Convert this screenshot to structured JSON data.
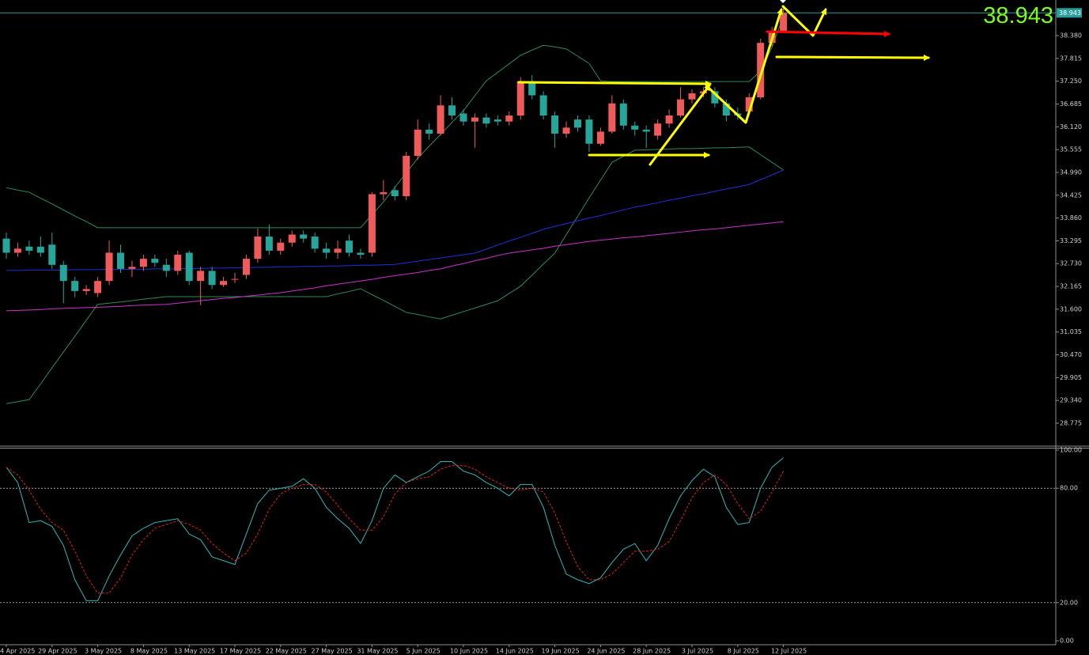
{
  "chart_data": [
    {
      "type": "candlestick",
      "categories": [
        "4 Apr 2025",
        null,
        null,
        null,
        "29 Apr 2025",
        null,
        null,
        null,
        "3 May 2025",
        null,
        null,
        null,
        "8 May 2025",
        null,
        null,
        null,
        "13 May 2025",
        null,
        null,
        null,
        "17 May 2025",
        null,
        null,
        null,
        "22 May 2025",
        null,
        null,
        null,
        "27 May 2025",
        null,
        null,
        null,
        "31 May 2025",
        null,
        null,
        null,
        "5 Jun 2025",
        null,
        null,
        null,
        "10 Jun 2025",
        null,
        null,
        null,
        "14 Jun 2025",
        null,
        null,
        null,
        "19 Jun 2025",
        null,
        null,
        null,
        "24 Jun 2025",
        null,
        null,
        null,
        "28 Jun 2025",
        null,
        null,
        null,
        "3 Jul 2025",
        null,
        null,
        null,
        "8 Jul 2025",
        null,
        null,
        null,
        "12 Jul 2025"
      ],
      "open": [
        33.35,
        33.0,
        33.15,
        33.15,
        33.2,
        32.7,
        32.3,
        32.05,
        32.0,
        32.3,
        33.0,
        32.6,
        32.65,
        32.85,
        32.7,
        32.55,
        33.0,
        32.3,
        32.55,
        32.2,
        32.35,
        32.45,
        32.85,
        33.4,
        33.05,
        33.25,
        33.45,
        33.4,
        33.1,
        33.0,
        33.3,
        33.0,
        33.0,
        34.45,
        34.55,
        34.4,
        35.4,
        36.05,
        35.95,
        36.65,
        36.45,
        36.25,
        36.35,
        36.3,
        36.25,
        36.4,
        37.25,
        36.9,
        36.4,
        35.95,
        36.3,
        36.3,
        35.7,
        36.0,
        36.7,
        36.15,
        36.05,
        35.9,
        36.2,
        36.4,
        36.8,
        36.95,
        37.0,
        36.7,
        36.45,
        36.5,
        36.85,
        38.2,
        38.5
      ],
      "high": [
        33.5,
        33.25,
        33.3,
        33.4,
        33.5,
        32.8,
        32.4,
        32.2,
        32.4,
        33.3,
        33.2,
        32.8,
        32.95,
        32.95,
        32.85,
        33.05,
        33.05,
        32.65,
        32.65,
        32.4,
        32.5,
        32.95,
        33.6,
        33.7,
        33.35,
        33.55,
        33.55,
        33.5,
        33.25,
        33.3,
        33.45,
        33.1,
        34.5,
        34.8,
        34.65,
        35.5,
        36.3,
        36.2,
        36.9,
        36.85,
        36.55,
        36.45,
        36.45,
        36.4,
        36.5,
        37.35,
        37.4,
        37.0,
        36.5,
        36.25,
        36.4,
        36.4,
        36.1,
        36.9,
        36.8,
        36.25,
        36.15,
        36.3,
        36.55,
        37.1,
        37.05,
        37.1,
        37.1,
        36.8,
        36.6,
        36.95,
        38.3,
        38.6,
        39.05
      ],
      "low": [
        32.85,
        32.9,
        32.95,
        32.9,
        32.6,
        31.75,
        31.9,
        31.95,
        31.9,
        32.2,
        32.5,
        32.4,
        32.55,
        32.65,
        32.4,
        32.45,
        32.2,
        31.7,
        32.1,
        32.15,
        32.25,
        32.35,
        32.75,
        32.95,
        32.95,
        33.15,
        33.25,
        33.0,
        32.85,
        32.85,
        32.9,
        32.85,
        32.9,
        34.3,
        34.3,
        34.3,
        35.3,
        35.8,
        35.9,
        36.3,
        36.15,
        35.6,
        36.1,
        36.15,
        36.15,
        36.3,
        36.8,
        36.3,
        35.6,
        35.85,
        36.0,
        35.5,
        35.65,
        35.95,
        36.05,
        35.9,
        35.6,
        35.8,
        36.1,
        36.35,
        36.7,
        36.85,
        36.6,
        36.25,
        36.3,
        36.4,
        36.8,
        38.1,
        38.45
      ],
      "close": [
        33.0,
        33.1,
        33.05,
        33.0,
        32.7,
        32.3,
        32.05,
        32.1,
        32.3,
        33.0,
        32.6,
        32.65,
        32.85,
        32.75,
        32.55,
        32.95,
        32.3,
        32.55,
        32.2,
        32.3,
        32.35,
        32.85,
        33.4,
        33.05,
        33.25,
        33.45,
        33.35,
        33.1,
        33.0,
        33.1,
        33.0,
        32.95,
        34.45,
        34.5,
        34.4,
        35.4,
        36.05,
        35.95,
        36.65,
        36.4,
        36.25,
        36.35,
        36.2,
        36.25,
        36.4,
        37.25,
        36.9,
        36.4,
        35.95,
        36.1,
        36.1,
        35.7,
        36.0,
        36.7,
        36.15,
        36.05,
        36.0,
        36.2,
        36.4,
        36.8,
        36.95,
        37.0,
        36.7,
        36.4,
        36.4,
        36.85,
        38.2,
        38.5,
        38.943
      ],
      "up_color": "#ef5b5b",
      "down_color": "#26a69a",
      "series": [
        {
          "color": "#2e8b57",
          "values": [
            34.61,
            34.55,
            34.5,
            34.35,
            34.21,
            34.06,
            33.91,
            33.77,
            33.62,
            33.62,
            33.62,
            33.62,
            33.62,
            33.62,
            33.62,
            33.62,
            33.62,
            33.62,
            33.62,
            33.62,
            33.62,
            33.62,
            33.62,
            33.62,
            33.62,
            33.62,
            33.62,
            33.62,
            33.62,
            33.62,
            33.62,
            33.62,
            33.94,
            34.26,
            34.62,
            34.98,
            35.34,
            35.64,
            35.93,
            36.23,
            36.52,
            36.89,
            37.26,
            37.47,
            37.68,
            37.89,
            38.02,
            38.14,
            38.1,
            38.05,
            37.87,
            37.69,
            37.26,
            37.24,
            37.24,
            37.24,
            37.24,
            37.24,
            37.24,
            37.24,
            37.24,
            37.24,
            37.24,
            37.24,
            37.24,
            37.24,
            37.5,
            38.09,
            38.87
          ]
        },
        {
          "color": "#2e8b57",
          "values": [
            29.26,
            29.31,
            29.36,
            29.75,
            30.15,
            30.54,
            30.93,
            31.33,
            31.72,
            31.75,
            31.78,
            31.81,
            31.85,
            31.88,
            31.91,
            31.91,
            31.91,
            31.91,
            31.91,
            31.91,
            31.91,
            31.91,
            31.91,
            31.91,
            31.91,
            31.91,
            31.91,
            31.91,
            31.91,
            31.98,
            32.04,
            32.11,
            31.96,
            31.82,
            31.67,
            31.52,
            31.47,
            31.41,
            31.36,
            31.45,
            31.54,
            31.63,
            31.72,
            31.81,
            31.99,
            32.17,
            32.44,
            32.72,
            32.99,
            33.45,
            33.9,
            34.36,
            34.8,
            35.24,
            35.39,
            35.54,
            35.55,
            35.56,
            35.57,
            35.58,
            35.58,
            35.59,
            35.6,
            35.6,
            35.61,
            35.62,
            35.43,
            35.24,
            35.05
          ]
        },
        {
          "color": "#1f2fd8",
          "values": [
            32.56,
            32.56,
            32.57,
            32.57,
            32.57,
            32.57,
            32.58,
            32.58,
            32.58,
            32.59,
            32.59,
            32.59,
            32.59,
            32.6,
            32.6,
            32.6,
            32.61,
            32.61,
            32.62,
            32.62,
            32.63,
            32.63,
            32.64,
            32.64,
            32.65,
            32.65,
            32.66,
            32.66,
            32.67,
            32.67,
            32.68,
            32.69,
            32.69,
            32.7,
            32.71,
            32.75,
            32.79,
            32.83,
            32.87,
            32.91,
            32.95,
            32.99,
            33.09,
            33.19,
            33.29,
            33.38,
            33.48,
            33.58,
            33.65,
            33.72,
            33.79,
            33.86,
            33.92,
            33.99,
            34.06,
            34.13,
            34.18,
            34.24,
            34.3,
            34.35,
            34.41,
            34.46,
            34.52,
            34.58,
            34.63,
            34.69,
            34.81,
            34.93,
            35.05
          ]
        },
        {
          "color": "#cc33cc",
          "values": [
            31.56,
            31.57,
            31.58,
            31.59,
            31.61,
            31.62,
            31.63,
            31.64,
            31.65,
            31.66,
            31.67,
            31.69,
            31.7,
            31.71,
            31.72,
            31.75,
            31.78,
            31.81,
            31.84,
            31.87,
            31.89,
            31.92,
            31.95,
            31.98,
            32.01,
            32.05,
            32.09,
            32.13,
            32.18,
            32.22,
            32.26,
            32.3,
            32.34,
            32.39,
            32.43,
            32.47,
            32.51,
            32.56,
            32.6,
            32.67,
            32.73,
            32.8,
            32.86,
            32.93,
            32.99,
            33.03,
            33.07,
            33.11,
            33.16,
            33.2,
            33.24,
            33.28,
            33.31,
            33.34,
            33.37,
            33.39,
            33.42,
            33.45,
            33.48,
            33.51,
            33.54,
            33.57,
            33.59,
            33.62,
            33.65,
            33.68,
            33.71,
            33.74,
            33.77
          ]
        }
      ],
      "last_price": 38.943,
      "last_price_color": "#2a9d9d",
      "ylim": [
        28.226,
        39.262
      ],
      "yticks": [
        {
          "value": 28.775,
          "label": "28.775"
        },
        {
          "value": 29.34,
          "label": "29.340"
        },
        {
          "value": 29.905,
          "label": "29.905"
        },
        {
          "value": 30.47,
          "label": "30.470"
        },
        {
          "value": 31.035,
          "label": "31.035"
        },
        {
          "value": 31.6,
          "label": "31.600"
        },
        {
          "value": 32.165,
          "label": "32.165"
        },
        {
          "value": 32.73,
          "label": "32.730"
        },
        {
          "value": 33.295,
          "label": "33.295"
        },
        {
          "value": 33.86,
          "label": "33.860"
        },
        {
          "value": 34.425,
          "label": "34.425"
        },
        {
          "value": 34.99,
          "label": "34.990"
        },
        {
          "value": 35.555,
          "label": "35.555"
        },
        {
          "value": 36.12,
          "label": "36.120"
        },
        {
          "value": 36.685,
          "label": "36.685"
        },
        {
          "value": 37.25,
          "label": "37.250"
        },
        {
          "value": 37.815,
          "label": "37.815"
        },
        {
          "value": 38.38,
          "label": "38.380"
        }
      ]
    },
    {
      "type": "line",
      "series": [
        {
          "color": "#2fb8b8",
          "values": [
            91,
            83,
            62,
            63,
            60,
            50,
            32,
            21,
            21,
            34,
            45,
            55,
            59,
            62,
            63,
            64,
            56,
            53,
            44,
            42,
            40,
            56,
            72,
            79,
            80,
            81,
            85,
            80,
            70,
            64,
            59,
            51,
            63,
            80,
            87,
            83,
            86,
            89,
            94,
            94,
            89,
            87,
            83,
            80,
            76,
            82,
            82,
            70,
            50,
            35,
            32,
            30,
            33,
            41,
            48,
            51,
            42,
            50,
            64,
            76,
            84,
            90,
            86,
            70,
            61,
            62,
            80,
            91,
            96
          ]
        },
        {
          "color": "#e02020",
          "dash": true,
          "values": [
            91,
            87,
            79,
            69,
            62,
            58,
            47,
            34,
            25,
            25,
            33,
            45,
            53,
            59,
            61,
            63,
            61,
            58,
            51,
            46,
            42,
            46,
            56,
            69,
            77,
            80,
            82,
            82,
            78,
            71,
            64,
            58,
            58,
            65,
            77,
            83,
            85,
            86,
            90,
            92,
            92,
            90,
            86,
            83,
            80,
            79,
            80,
            78,
            67,
            52,
            39,
            32,
            32,
            35,
            41,
            47,
            47,
            48,
            52,
            63,
            75,
            83,
            87,
            82,
            72,
            64,
            68,
            78,
            89
          ]
        }
      ],
      "ylim": [
        0,
        100
      ],
      "yticks": [
        {
          "value": 0,
          "label": "0.00"
        },
        {
          "value": 20,
          "label": "20.00"
        },
        {
          "value": 80,
          "label": "80.00"
        },
        {
          "value": 100,
          "label": "100.00"
        }
      ],
      "levels": [
        20,
        80
      ]
    }
  ]
}
